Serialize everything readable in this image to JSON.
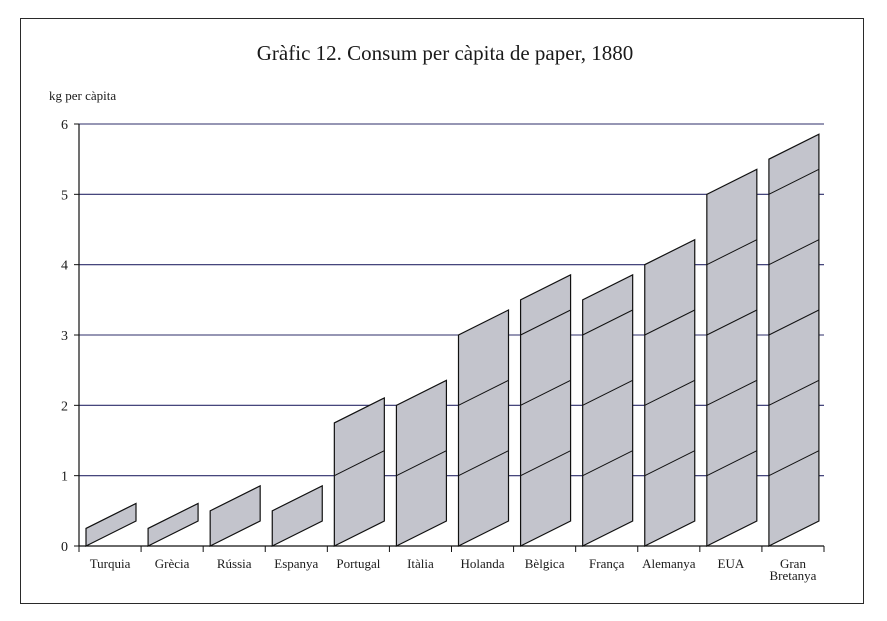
{
  "chart_data": {
    "type": "bar",
    "title": "Gràfic 12. Consum per càpita de paper, 1880",
    "ylabel": "kg per càpita",
    "xlabel": "",
    "categories": [
      "Turquia",
      "Grècia",
      "Rússia",
      "Espanya",
      "Portugal",
      "Itàlia",
      "Holanda",
      "Bèlgica",
      "França",
      "Alemanya",
      "EUA",
      "Gran Bretanya"
    ],
    "values": [
      0.25,
      0.25,
      0.5,
      0.5,
      1.75,
      2.0,
      3.0,
      3.5,
      3.5,
      4.0,
      5.0,
      5.5
    ],
    "ylim": [
      0,
      6
    ],
    "yticks": [
      "0",
      "1",
      "2",
      "3",
      "4",
      "5",
      "6"
    ],
    "grid": true,
    "bar_style": "3d-parallelogram",
    "colors": {
      "bar_fill": "#c3c4cc",
      "bar_stroke": "#111111",
      "grid": "#2c2c6a",
      "axis": "#111111"
    }
  }
}
